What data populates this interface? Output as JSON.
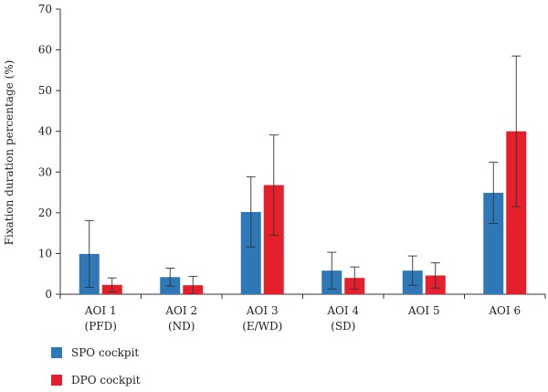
{
  "chart_data": {
    "type": "bar",
    "ylabel": "Fixation duration percentage (%)",
    "xlabel": "",
    "ylim": [
      0,
      70
    ],
    "yticks": [
      0,
      10,
      20,
      30,
      40,
      50,
      60,
      70
    ],
    "categories": [
      [
        "AOI 1",
        "(PFD)"
      ],
      [
        "AOI 2",
        "(ND)"
      ],
      [
        "AOI 3",
        "(E/WD)"
      ],
      [
        "AOI 4",
        "(SD)"
      ],
      [
        "AOI 5"
      ],
      [
        "AOI 6"
      ]
    ],
    "series": [
      {
        "name": "SPO cockpit",
        "color": "#2e78b7",
        "values": [
          9.9,
          4.2,
          20.2,
          5.8,
          5.8,
          24.9
        ],
        "error": [
          8.2,
          2.2,
          8.6,
          4.5,
          3.6,
          7.5
        ]
      },
      {
        "name": "DPO cockpit",
        "color": "#e3202b",
        "values": [
          2.3,
          2.2,
          26.8,
          4.0,
          4.6,
          40.0
        ],
        "error": [
          1.7,
          2.2,
          12.3,
          2.7,
          3.1,
          18.5
        ]
      }
    ],
    "legend_position": "bottom-left",
    "grid": false
  }
}
